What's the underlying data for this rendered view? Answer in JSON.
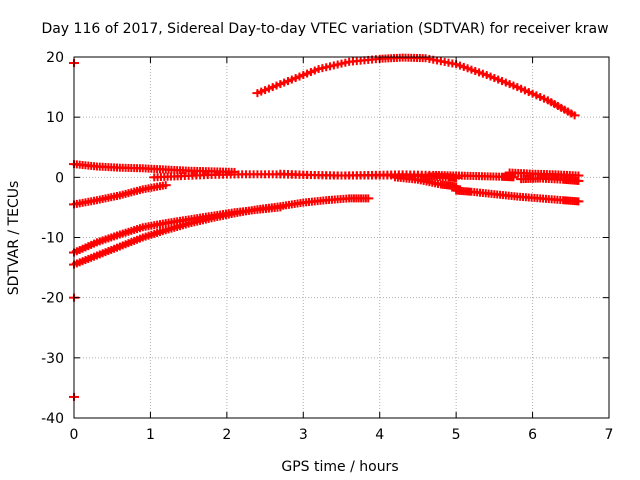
{
  "chart_data": {
    "type": "scatter",
    "title": "Day 116 of 2017, Sidereal Day-to-day VTEC variation (SDTVAR) for receiver kraw",
    "xlabel": "GPS time / hours",
    "ylabel": "SDTVAR / TECUs",
    "xlim": [
      0,
      7
    ],
    "ylim": [
      -40,
      20
    ],
    "xticks": [
      0,
      1,
      2,
      3,
      4,
      5,
      6,
      7
    ],
    "yticks": [
      -40,
      -30,
      -20,
      -10,
      0,
      10,
      20
    ],
    "grid": true,
    "legend": "none",
    "series_color": "#ff0000",
    "series": [
      {
        "x": [
          2.4,
          2.8,
          3.2,
          3.6,
          4.0,
          4.3,
          4.6,
          5.0,
          5.4,
          5.8,
          6.2,
          6.55
        ],
        "y": [
          14.0,
          16.0,
          18.0,
          19.2,
          19.7,
          19.9,
          19.8,
          18.8,
          17.0,
          15.0,
          12.8,
          10.3
        ]
      },
      {
        "x": [
          0.0,
          0.3,
          0.6,
          0.9,
          1.2,
          1.5,
          1.8,
          2.1
        ],
        "y": [
          2.2,
          1.8,
          1.6,
          1.5,
          1.3,
          1.1,
          1.0,
          0.9
        ]
      },
      {
        "x": [
          1.05,
          1.4,
          1.8,
          2.2,
          2.6,
          3.0,
          3.4,
          3.8,
          4.2,
          4.6,
          4.9,
          5.0
        ],
        "y": [
          0.0,
          0.2,
          0.4,
          0.5,
          0.5,
          0.4,
          0.3,
          0.3,
          0.3,
          0.2,
          0.0,
          -0.1
        ]
      },
      {
        "x": [
          2.7,
          3.1,
          3.5,
          3.9,
          4.3,
          4.7,
          5.0,
          5.3,
          5.6,
          5.75
        ],
        "y": [
          0.6,
          0.4,
          0.3,
          0.4,
          0.5,
          0.4,
          0.3,
          0.2,
          0.1,
          0.0
        ]
      },
      {
        "x": [
          0.0,
          0.3,
          0.6,
          0.9,
          1.2
        ],
        "y": [
          -4.5,
          -3.8,
          -3.0,
          -2.0,
          -1.3
        ]
      },
      {
        "x": [
          4.2,
          4.5,
          4.8,
          5.0
        ],
        "y": [
          0.0,
          -0.4,
          -1.2,
          -1.5
        ]
      },
      {
        "x": [
          5.0,
          5.2,
          5.5,
          5.8,
          6.1,
          6.4,
          6.6
        ],
        "y": [
          -2.2,
          -2.4,
          -2.8,
          -3.2,
          -3.5,
          -3.8,
          -4.0
        ]
      },
      {
        "x": [
          5.7,
          6.0,
          6.3,
          6.6
        ],
        "y": [
          0.8,
          0.6,
          0.5,
          0.3
        ]
      },
      {
        "x": [
          5.85,
          6.1,
          6.4,
          6.6
        ],
        "y": [
          -0.3,
          -0.2,
          -0.4,
          -0.6
        ]
      },
      {
        "x": [
          0.0,
          0.3,
          0.6,
          0.9,
          1.2,
          1.5,
          1.8,
          2.1,
          2.4,
          2.7
        ],
        "y": [
          -12.5,
          -10.8,
          -9.5,
          -8.3,
          -7.6,
          -7.0,
          -6.4,
          -5.8,
          -5.4,
          -5.0
        ]
      },
      {
        "x": [
          0.0,
          0.3,
          0.6,
          0.9,
          1.2,
          1.5,
          1.8,
          2.1,
          2.4,
          2.7,
          3.0,
          3.3,
          3.6,
          3.85
        ],
        "y": [
          -14.5,
          -13.0,
          -11.5,
          -10.0,
          -8.8,
          -7.7,
          -6.8,
          -6.0,
          -5.3,
          -4.8,
          -4.2,
          -3.8,
          -3.5,
          -3.5
        ]
      },
      {
        "x": [
          0.0
        ],
        "y": [
          -20.0
        ]
      },
      {
        "x": [
          0.0
        ],
        "y": [
          -36.5
        ]
      },
      {
        "x": [
          0.0
        ],
        "y": [
          19.0
        ]
      }
    ]
  }
}
